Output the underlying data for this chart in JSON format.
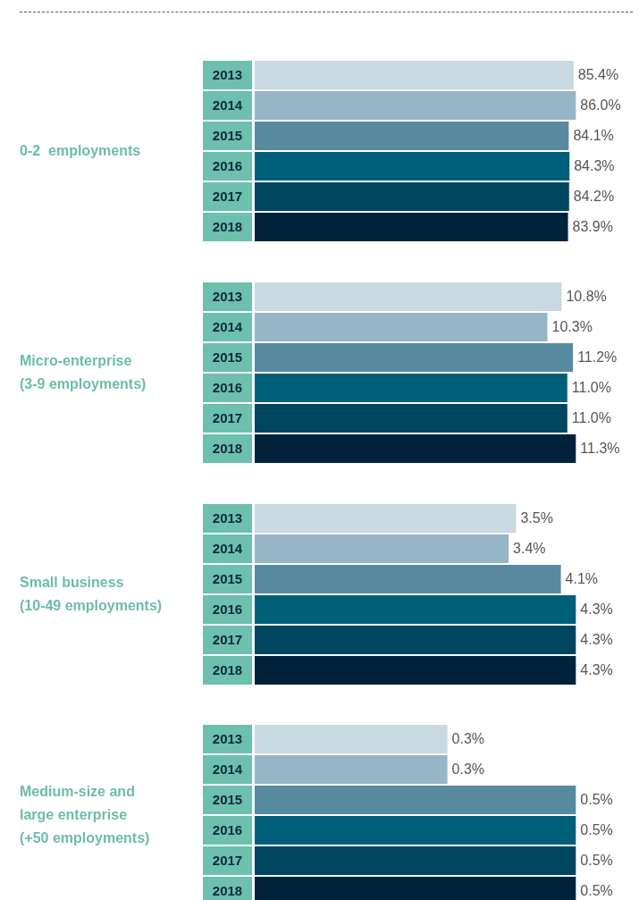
{
  "chart_data": [
    {
      "type": "bar",
      "orientation": "horizontal",
      "title": "0-2  employments",
      "categories": [
        "2013",
        "2014",
        "2015",
        "2016",
        "2017",
        "2018"
      ],
      "values": [
        85.4,
        86.0,
        84.1,
        84.3,
        84.2,
        83.9
      ],
      "value_labels": [
        "85.4%",
        "86.0%",
        "84.1%",
        "84.3%",
        "84.2%",
        "83.9%"
      ],
      "colors": [
        "#c8d9e1",
        "#96b5c6",
        "#578aa0",
        "#005f78",
        "#004560",
        "#00233b"
      ]
    },
    {
      "type": "bar",
      "orientation": "horizontal",
      "title": "Micro-enterprise\n(3-9 employments)",
      "categories": [
        "2013",
        "2014",
        "2015",
        "2016",
        "2017",
        "2018"
      ],
      "values": [
        10.8,
        10.3,
        11.2,
        11.0,
        11.0,
        11.3
      ],
      "value_labels": [
        "10.8%",
        "10.3%",
        "11.2%",
        "11.0%",
        "11.0%",
        "11.3%"
      ],
      "colors": [
        "#c8d9e1",
        "#96b5c6",
        "#578aa0",
        "#005f78",
        "#004560",
        "#00233b"
      ]
    },
    {
      "type": "bar",
      "orientation": "horizontal",
      "title": "Small business\n(10-49 employments)",
      "categories": [
        "2013",
        "2014",
        "2015",
        "2016",
        "2017",
        "2018"
      ],
      "values": [
        3.5,
        3.4,
        4.1,
        4.3,
        4.3,
        4.3
      ],
      "value_labels": [
        "3.5%",
        "3.4%",
        "4.1%",
        "4.3%",
        "4.3%",
        "4.3%"
      ],
      "colors": [
        "#c8d9e1",
        "#96b5c6",
        "#578aa0",
        "#005f78",
        "#004560",
        "#00233b"
      ]
    },
    {
      "type": "bar",
      "orientation": "horizontal",
      "title": "Medium-size and\nlarge enterprise\n(+50 employments)",
      "categories": [
        "2013",
        "2014",
        "2015",
        "2016",
        "2017",
        "2018"
      ],
      "values": [
        0.3,
        0.3,
        0.5,
        0.5,
        0.5,
        0.5
      ],
      "value_labels": [
        "0.3%",
        "0.3%",
        "0.5%",
        "0.5%",
        "0.5%",
        "0.5%"
      ],
      "colors": [
        "#c8d9e1",
        "#96b5c6",
        "#578aa0",
        "#005f78",
        "#004560",
        "#00233b"
      ]
    }
  ]
}
